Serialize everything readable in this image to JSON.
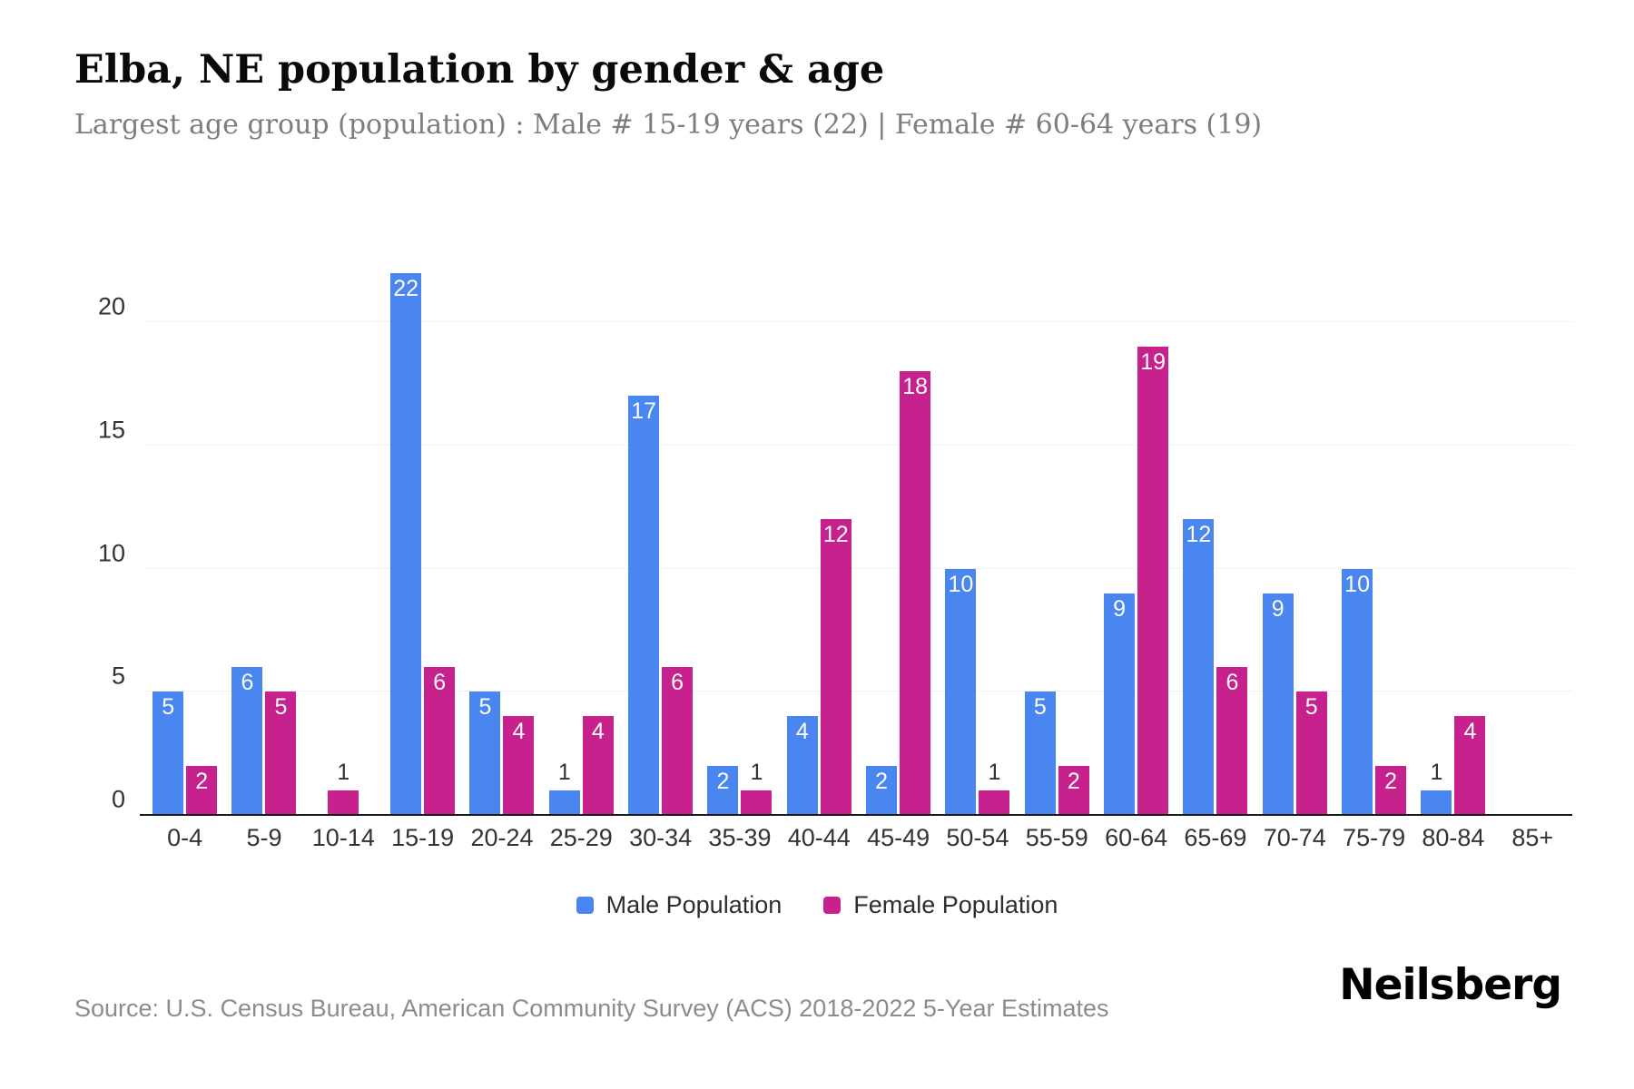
{
  "header": {
    "title": "Elba, NE population by gender & age",
    "subtitle": "Largest age group (population) : Male # 15-19 years (22) | Female # 60-64 years (19)"
  },
  "chart_data": {
    "type": "bar",
    "title": "Elba, NE population by gender & age",
    "categories": [
      "0-4",
      "5-9",
      "10-14",
      "15-19",
      "20-24",
      "25-29",
      "30-34",
      "35-39",
      "40-44",
      "45-49",
      "50-54",
      "55-59",
      "60-64",
      "65-69",
      "70-74",
      "75-79",
      "80-84",
      "85+"
    ],
    "series": [
      {
        "name": "Male Population",
        "color": "#4a86ef",
        "values": [
          5,
          6,
          0,
          22,
          5,
          1,
          17,
          2,
          4,
          2,
          10,
          5,
          9,
          12,
          9,
          10,
          1,
          0
        ]
      },
      {
        "name": "Female Population",
        "color": "#c7218e",
        "values": [
          2,
          5,
          1,
          6,
          4,
          4,
          6,
          1,
          12,
          18,
          1,
          2,
          19,
          6,
          5,
          2,
          4,
          0
        ]
      }
    ],
    "xlabel": "",
    "ylabel": "",
    "yticks": [
      0,
      5,
      10,
      15,
      20
    ],
    "ylim": [
      0,
      22.75
    ],
    "grid": true,
    "legend_position": "bottom",
    "bar_label_rule": "labels shown on every nonzero bar; value 1 shown above bar in dark, others inside top in white"
  },
  "footer": {
    "source": "Source: U.S. Census Bureau, American Community Survey (ACS) 2018-2022 5-Year Estimates",
    "brand": "Neilsberg"
  },
  "colors": {
    "male": "#4a86ef",
    "female": "#c7218e",
    "gridline": "#f2f2f2",
    "axis_line": "#1a1a1a",
    "tick_text": "#333333",
    "subtitle_text": "#7d7d7d",
    "source_text": "#8c8c8c"
  }
}
